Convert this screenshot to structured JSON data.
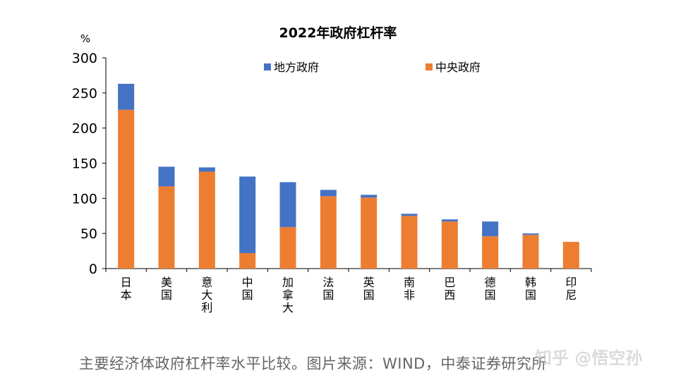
{
  "chart_data": {
    "type": "bar",
    "stacked": true,
    "title": "2022年政府杠杆率",
    "unit": "%",
    "categories": [
      "日本",
      "美国",
      "意大利",
      "中国",
      "加拿大",
      "法国",
      "英国",
      "南非",
      "巴西",
      "德国",
      "韩国",
      "印尼"
    ],
    "series": [
      {
        "name": "中央政府",
        "color": "#ED7D31",
        "values": [
          226,
          117,
          138,
          22,
          59,
          103,
          101,
          75,
          67,
          46,
          48,
          38
        ]
      },
      {
        "name": "地方政府",
        "color": "#4472C4",
        "values": [
          37,
          28,
          6,
          109,
          64,
          9,
          4,
          3,
          3,
          21,
          2,
          0
        ]
      }
    ],
    "legend_order": [
      "地方政府",
      "中央政府"
    ],
    "ylim": [
      0,
      300
    ],
    "yticks": [
      0,
      50,
      100,
      150,
      200,
      250,
      300
    ],
    "grid": false,
    "legend_position": "top"
  },
  "caption": "主要经济体政府杠杆率水平比较。图片来源：WIND，中泰证券研究所",
  "watermark": "知乎 @悟空孙"
}
